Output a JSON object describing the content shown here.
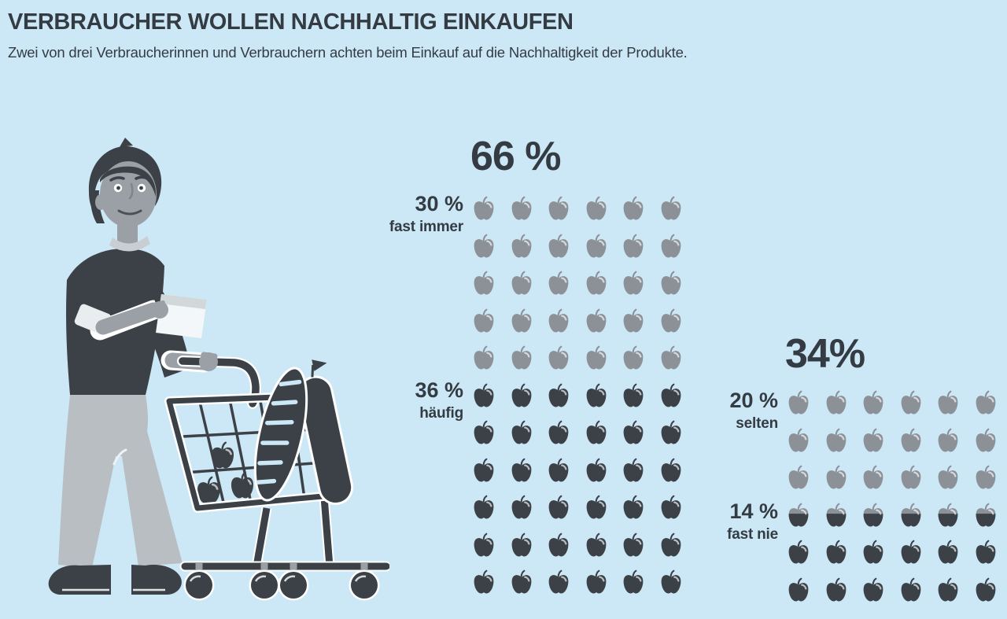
{
  "header": {
    "title": "VERBRAUCHER WOLLEN NACHHALTIG EINKAUFEN",
    "subtitle": "Zwei von drei Verbraucherinnen und Verbrauchern achten beim Einkauf auf die Nachhaltigkeit der Produkte."
  },
  "colors": {
    "background": "#cce8f6",
    "dark": "#3b4146",
    "gray": "#8b9197",
    "text": "#343b42",
    "skin": "#9aa0a6",
    "pants": "#b9bec3",
    "wheelstem": "#9aa0a6"
  },
  "illustration": {
    "description": "Mann mit Einkaufsliste und Einkaufswagen mit Brot und Äpfeln"
  },
  "chart_data": {
    "type": "pictograph",
    "icon": "apple",
    "icon_value_percent": 1,
    "columns": 6,
    "groups": [
      {
        "total_label": "66 %",
        "total_value": 66,
        "segments": [
          {
            "value": 30,
            "value_label": "30 %",
            "name": "fast immer",
            "color": "#8b9197"
          },
          {
            "value": 36,
            "value_label": "36 %",
            "name": "häufig",
            "color": "#3b4146"
          }
        ],
        "row_fills": [
          "gray",
          "gray",
          "gray",
          "gray",
          "gray",
          "dark",
          "dark",
          "dark",
          "dark",
          "dark",
          "dark"
        ]
      },
      {
        "total_label": "34%",
        "total_value": 34,
        "segments": [
          {
            "value": 20,
            "value_label": "20 %",
            "name": "selten",
            "color": "#8b9197"
          },
          {
            "value": 14,
            "value_label": "14 %",
            "name": "fast nie",
            "color": "#3b4146"
          }
        ],
        "row_fills": [
          "gray",
          "gray",
          "gray",
          "split",
          "dark",
          "dark"
        ]
      }
    ]
  }
}
